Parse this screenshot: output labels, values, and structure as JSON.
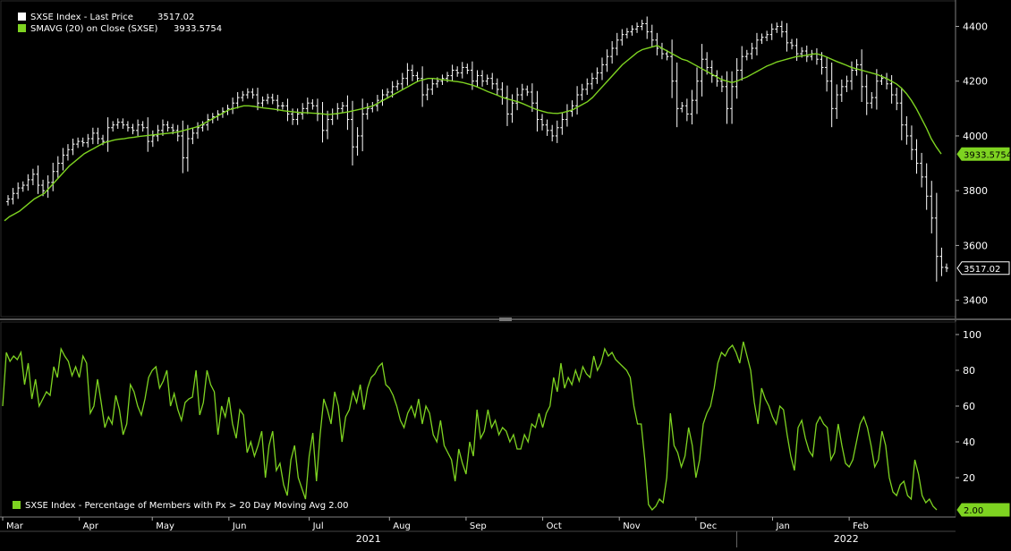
{
  "chart_data": [
    {
      "type": "ohlc",
      "legend_position": "top-left",
      "ylim": [
        3340,
        4480
      ],
      "yticks": [
        3400,
        3600,
        3800,
        4000,
        4200,
        4400
      ],
      "series": [
        {
          "name": "SXSE Index - Last Price",
          "legend_value": "3517.02",
          "last_value_label": "3517.02",
          "color": "#ffffff",
          "close": [
            3770,
            3790,
            3810,
            3820,
            3840,
            3860,
            3820,
            3800,
            3830,
            3870,
            3900,
            3930,
            3950,
            3970,
            3980,
            3975,
            3990,
            4010,
            3990,
            3980,
            4030,
            4040,
            4050,
            4040,
            4030,
            4020,
            4040,
            4030,
            3980,
            4000,
            4020,
            4040,
            4030,
            4020,
            4000,
            3920,
            3990,
            4010,
            4030,
            4040,
            4060,
            4070,
            4080,
            4090,
            4100,
            4120,
            4140,
            4150,
            4160,
            4150,
            4120,
            4130,
            4140,
            4130,
            4110,
            4110,
            4080,
            4060,
            4080,
            4100,
            4120,
            4110,
            4080,
            4020,
            4060,
            4080,
            4100,
            4110,
            4060,
            3960,
            4000,
            4080,
            4100,
            4110,
            4130,
            4150,
            4160,
            4180,
            4190,
            4210,
            4240,
            4220,
            4210,
            4150,
            4170,
            4190,
            4200,
            4210,
            4220,
            4240,
            4230,
            4250,
            4240,
            4200,
            4220,
            4200,
            4210,
            4190,
            4170,
            4140,
            4080,
            4120,
            4150,
            4170,
            4160,
            4120,
            4060,
            4040,
            4020,
            4000,
            4030,
            4060,
            4090,
            4110,
            4150,
            4170,
            4190,
            4210,
            4230,
            4260,
            4290,
            4320,
            4350,
            4370,
            4380,
            4390,
            4400,
            4410,
            4380,
            4350,
            4320,
            4300,
            4290,
            4200,
            4100,
            4110,
            4080,
            4130,
            4200,
            4280,
            4250,
            4220,
            4200,
            4180,
            4100,
            4180,
            4240,
            4290,
            4300,
            4320,
            4350,
            4360,
            4370,
            4390,
            4400,
            4380,
            4340,
            4330,
            4300,
            4310,
            4290,
            4300,
            4280,
            4250,
            4200,
            4100,
            4150,
            4180,
            4200,
            4240,
            4260,
            4180,
            4120,
            4140,
            4200,
            4210,
            4190,
            4150,
            4120,
            4040,
            4000,
            3950,
            3900,
            3850,
            3780,
            3700,
            3560,
            3520,
            3517
          ]
        },
        {
          "name": "SMAVG (20) on Close (SXSE)",
          "legend_value": "3933.5754",
          "last_value_label": "3933.5754",
          "color": "#7ed321",
          "values": [
            3690,
            3705,
            3715,
            3725,
            3740,
            3755,
            3770,
            3780,
            3790,
            3810,
            3830,
            3850,
            3870,
            3890,
            3905,
            3920,
            3935,
            3945,
            3955,
            3965,
            3975,
            3980,
            3985,
            3988,
            3990,
            3993,
            3995,
            3998,
            4000,
            4002,
            4004,
            4006,
            4008,
            4010,
            4012,
            4015,
            4020,
            4025,
            4030,
            4035,
            4045,
            4055,
            4065,
            4075,
            4085,
            4095,
            4100,
            4105,
            4110,
            4110,
            4108,
            4105,
            4102,
            4100,
            4098,
            4095,
            4092,
            4090,
            4088,
            4086,
            4085,
            4084,
            4083,
            4082,
            4080,
            4078,
            4080,
            4082,
            4085,
            4088,
            4092,
            4096,
            4100,
            4105,
            4110,
            4120,
            4130,
            4140,
            4150,
            4160,
            4170,
            4180,
            4190,
            4200,
            4205,
            4210,
            4210,
            4208,
            4205,
            4203,
            4200,
            4198,
            4195,
            4190,
            4185,
            4178,
            4170,
            4162,
            4155,
            4148,
            4140,
            4135,
            4130,
            4125,
            4118,
            4110,
            4102,
            4095,
            4090,
            4085,
            4083,
            4082,
            4085,
            4090,
            4095,
            4105,
            4115,
            4125,
            4140,
            4160,
            4180,
            4200,
            4220,
            4240,
            4260,
            4275,
            4290,
            4305,
            4315,
            4320,
            4325,
            4330,
            4320,
            4310,
            4300,
            4290,
            4280,
            4275,
            4265,
            4255,
            4245,
            4235,
            4225,
            4215,
            4205,
            4200,
            4195,
            4200,
            4208,
            4215,
            4225,
            4235,
            4245,
            4255,
            4262,
            4270,
            4275,
            4280,
            4285,
            4290,
            4292,
            4295,
            4298,
            4300,
            4295,
            4288,
            4280,
            4272,
            4265,
            4258,
            4250,
            4245,
            4240,
            4235,
            4230,
            4225,
            4218,
            4210,
            4200,
            4190,
            4175,
            4155,
            4130,
            4100,
            4065,
            4030,
            3990,
            3960,
            3934
          ]
        }
      ]
    },
    {
      "type": "line",
      "legend_position": "bottom-left",
      "ylim": [
        0,
        106
      ],
      "yticks": [
        20,
        40,
        60,
        80,
        100
      ],
      "xlabels": [
        {
          "label": "Mar",
          "i": 0
        },
        {
          "label": "Apr",
          "i": 21
        },
        {
          "label": "May",
          "i": 41
        },
        {
          "label": "Jun",
          "i": 62
        },
        {
          "label": "Jul",
          "i": 84
        },
        {
          "label": "Aug",
          "i": 106
        },
        {
          "label": "Sep",
          "i": 127
        },
        {
          "label": "Oct",
          "i": 148
        },
        {
          "label": "Nov",
          "i": 169
        },
        {
          "label": "Dec",
          "i": 190
        },
        {
          "label": "Jan",
          "i": 211
        },
        {
          "label": "Feb",
          "i": 232
        }
      ],
      "year_labels": [
        "2021",
        "2022"
      ],
      "series": [
        {
          "name": "SXSE Index - Percentage of Members with Px > 20 Day Moving Avg 2.00",
          "last_value_label": "2.00",
          "color": "#7ed321",
          "values": [
            60,
            90,
            85,
            88,
            86,
            90,
            72,
            84,
            64,
            75,
            60,
            64,
            68,
            66,
            82,
            76,
            92,
            88,
            85,
            77,
            82,
            76,
            88,
            84,
            56,
            60,
            75,
            62,
            48,
            54,
            50,
            66,
            58,
            44,
            50,
            72,
            68,
            60,
            55,
            64,
            76,
            80,
            82,
            70,
            74,
            80,
            60,
            67,
            58,
            52,
            62,
            64,
            65,
            80,
            55,
            62,
            80,
            72,
            68,
            44,
            60,
            54,
            65,
            50,
            42,
            58,
            55,
            34,
            40,
            32,
            38,
            46,
            20,
            38,
            46,
            24,
            28,
            16,
            10,
            30,
            38,
            20,
            14,
            8,
            32,
            45,
            18,
            44,
            64,
            58,
            50,
            68,
            60,
            40,
            54,
            58,
            68,
            62,
            72,
            58,
            70,
            76,
            78,
            82,
            84,
            72,
            70,
            66,
            60,
            52,
            48,
            56,
            60,
            54,
            64,
            50,
            60,
            56,
            44,
            40,
            52,
            38,
            34,
            30,
            18,
            36,
            28,
            22,
            40,
            32,
            58,
            42,
            46,
            58,
            48,
            52,
            44,
            48,
            46,
            40,
            44,
            36,
            36,
            44,
            40,
            50,
            48,
            56,
            48,
            56,
            60,
            76,
            68,
            84,
            70,
            76,
            72,
            80,
            74,
            82,
            78,
            76,
            88,
            80,
            84,
            92,
            88,
            90,
            86,
            84,
            82,
            80,
            76,
            60,
            50,
            50,
            30,
            5,
            2,
            4,
            8,
            6,
            20,
            56,
            38,
            34,
            26,
            32,
            48,
            38,
            20,
            30,
            50,
            56,
            60,
            70,
            84,
            90,
            88,
            92,
            94,
            90,
            84,
            96,
            88,
            80,
            62,
            50,
            70,
            64,
            60,
            54,
            50,
            60,
            58,
            44,
            32,
            24,
            48,
            52,
            42,
            35,
            32,
            50,
            54,
            50,
            48,
            30,
            34,
            50,
            38,
            28,
            26,
            30,
            40,
            50,
            54,
            48,
            38,
            26,
            30,
            46,
            38,
            20,
            12,
            10,
            16,
            18,
            10,
            8,
            30,
            22,
            10,
            6,
            8,
            4,
            2
          ]
        }
      ]
    }
  ]
}
